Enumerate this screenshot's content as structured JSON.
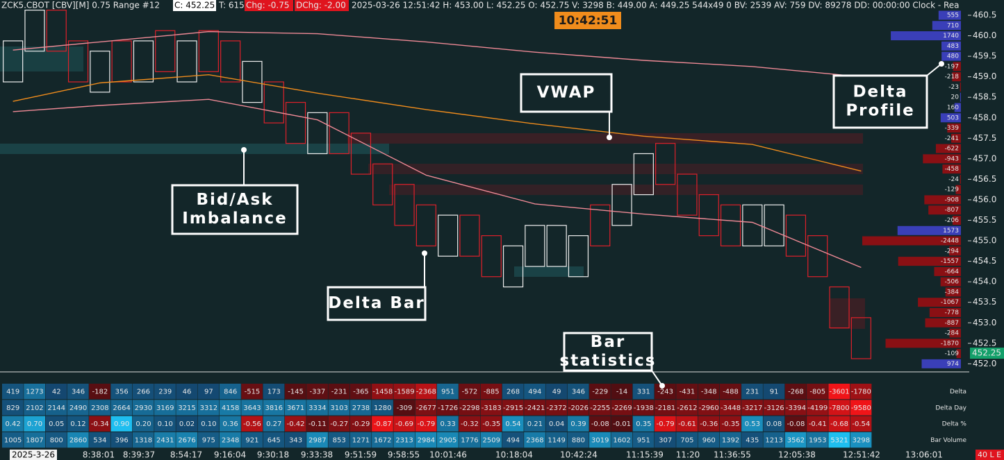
{
  "header": {
    "symbol": "ZCK5.CBOT [CBV][M]  0.75 Range #12",
    "close": "C: 452.25",
    "ticks": "T: 615",
    "chg": "Chg: -0.75",
    "dchg": "DChg: -2.00",
    "info": "2025-03-26 12:51:42 H: 453.00 L: 452.25 O: 452.75 V: 3298 B: 449.00 A: 449.25 544x49 0 BV: 2539 AV: 759 DV: 89278 DD: 00:00:00 Clock - Rea"
  },
  "clock": "10:42:51",
  "price_axis": {
    "labels": [
      "460.5",
      "460.0",
      "459.5",
      "459.0",
      "458.5",
      "458.0",
      "457.5",
      "457.0",
      "456.5",
      "456.0",
      "455.5",
      "455.0",
      "454.5",
      "454.0",
      "453.5",
      "453.0",
      "452.5",
      "452.0"
    ],
    "current": "452.25"
  },
  "time_axis": {
    "date": "2025-3-26",
    "labels": [
      "8:38:01",
      "8:39:37",
      "8:54:17",
      "9:16:04",
      "9:30:18",
      "9:33:38",
      "9:51:59",
      "9:58:55",
      "10:01:46",
      "10:18:04",
      "10:42:24",
      "11:15:39",
      "11:20",
      "11:36:55",
      "12:05:38",
      "12:51:42",
      "13:06:01"
    ],
    "status": "40 L E"
  },
  "bars": {
    "high": [
      459.75,
      460.5,
      460.5,
      459.75,
      459.5,
      459.75,
      459.75,
      460.0,
      459.75,
      460.0,
      459.75,
      459.25,
      458.75,
      458.25,
      458.0,
      458.0,
      457.5,
      456.75,
      456.25,
      455.75,
      455.5,
      455.5,
      455.0,
      454.75,
      455.25,
      455.25,
      455.0,
      455.75,
      456.25,
      457.0,
      457.25,
      456.5,
      456.0,
      455.75,
      455.75,
      455.75,
      455.5,
      455.0,
      453.75,
      453.0
    ],
    "low": [
      459.0,
      459.75,
      459.75,
      459.0,
      458.75,
      459.0,
      459.0,
      459.25,
      459.0,
      459.25,
      459.0,
      458.5,
      458.0,
      457.5,
      457.25,
      457.25,
      456.75,
      456.0,
      455.5,
      455.0,
      454.75,
      454.75,
      454.25,
      454.0,
      454.5,
      454.5,
      454.25,
      455.0,
      455.5,
      456.25,
      456.5,
      455.75,
      455.25,
      455.0,
      455.0,
      455.0,
      454.75,
      454.25,
      453.0,
      452.25
    ],
    "up": [
      true,
      true,
      false,
      false,
      true,
      false,
      true,
      false,
      true,
      false,
      false,
      true,
      false,
      false,
      true,
      false,
      false,
      false,
      false,
      false,
      true,
      false,
      false,
      true,
      true,
      true,
      true,
      false,
      true,
      true,
      false,
      false,
      false,
      false,
      true,
      true,
      false,
      false,
      false,
      false
    ]
  },
  "lines": {
    "x": [
      0,
      4,
      9,
      14,
      19,
      24,
      29,
      34,
      39
    ],
    "vwap": [
      458.4,
      458.85,
      459.05,
      458.6,
      458.2,
      457.85,
      457.55,
      457.35,
      456.7
    ],
    "upper": [
      459.65,
      459.85,
      460.1,
      460.05,
      459.85,
      459.6,
      459.4,
      459.25,
      459.0
    ],
    "lower": [
      458.15,
      458.3,
      458.45,
      457.95,
      456.6,
      455.9,
      455.65,
      455.45,
      454.35
    ]
  },
  "delta_profile": {
    "values": [
      "555",
      "710",
      "1740",
      "483",
      "480",
      "-197",
      "-218",
      "-23",
      "20",
      "160",
      "503",
      "-339",
      "-241",
      "-622",
      "-943",
      "-458",
      "-24",
      "-129",
      "-908",
      "-807",
      "-206",
      "1573",
      "-2448",
      "-294",
      "-1557",
      "-664",
      "-506",
      "-384",
      "-1067",
      "-778",
      "-887",
      "-284",
      "-1870",
      "-109",
      "974"
    ]
  },
  "stats": {
    "rows": [
      {
        "label": "Delta",
        "values": [
          "419",
          "1273",
          "42",
          "346",
          "-182",
          "356",
          "266",
          "239",
          "46",
          "97",
          "846",
          "-515",
          "173",
          "-145",
          "-337",
          "-231",
          "-365",
          "-1458",
          "-1589",
          "-2368",
          "951",
          "-572",
          "-885",
          "268",
          "494",
          "49",
          "346",
          "-229",
          "-14",
          "331",
          "-243",
          "-431",
          "-348",
          "-488",
          "231",
          "91",
          "-268",
          "-805",
          "-3601",
          "-1780"
        ]
      },
      {
        "label": "Delta Day",
        "values": [
          "829",
          "2102",
          "2144",
          "2490",
          "2308",
          "2664",
          "2930",
          "3169",
          "3215",
          "3312",
          "4158",
          "3643",
          "3816",
          "3671",
          "3334",
          "3103",
          "2738",
          "1280",
          "-309",
          "-2677",
          "-1726",
          "-2298",
          "-3183",
          "-2915",
          "-2421",
          "-2372",
          "-2026",
          "-2255",
          "-2269",
          "-1938",
          "-2181",
          "-2612",
          "-2960",
          "-3448",
          "-3217",
          "-3126",
          "-3394",
          "-4199",
          "-7800",
          "-9580"
        ]
      },
      {
        "label": "Delta %",
        "values": [
          "0.42",
          "0.70",
          "0.05",
          "0.12",
          "-0.34",
          "0.90",
          "0.20",
          "0.10",
          "0.02",
          "0.10",
          "0.36",
          "-0.56",
          "0.27",
          "-0.42",
          "-0.11",
          "-0.27",
          "-0.29",
          "-0.87",
          "-0.69",
          "-0.79",
          "0.33",
          "-0.32",
          "-0.35",
          "0.54",
          "0.21",
          "0.04",
          "0.39",
          "-0.08",
          "-0.01",
          "0.35",
          "-0.79",
          "-0.61",
          "-0.36",
          "-0.35",
          "0.53",
          "0.08",
          "-0.08",
          "-0.41",
          "-0.68",
          "-0.54"
        ]
      },
      {
        "label": "Bar Volume",
        "values": [
          "1005",
          "1807",
          "800",
          "2860",
          "534",
          "396",
          "1318",
          "2431",
          "2676",
          "975",
          "2348",
          "921",
          "645",
          "343",
          "2987",
          "853",
          "1271",
          "1672",
          "2313",
          "2984",
          "2905",
          "1776",
          "2509",
          "494",
          "2368",
          "1149",
          "880",
          "3019",
          "1602",
          "951",
          "307",
          "705",
          "960",
          "1392",
          "435",
          "1213",
          "3562",
          "1953",
          "5321",
          "3298"
        ]
      }
    ]
  },
  "annotations": [
    {
      "lines": [
        "VWAP"
      ]
    },
    {
      "lines": [
        "Delta",
        "Profile"
      ]
    },
    {
      "lines": [
        "Bid/Ask",
        "Imbalance"
      ]
    },
    {
      "lines": [
        "Delta Bar"
      ]
    },
    {
      "lines": [
        "Bar",
        "statistics"
      ]
    }
  ]
}
